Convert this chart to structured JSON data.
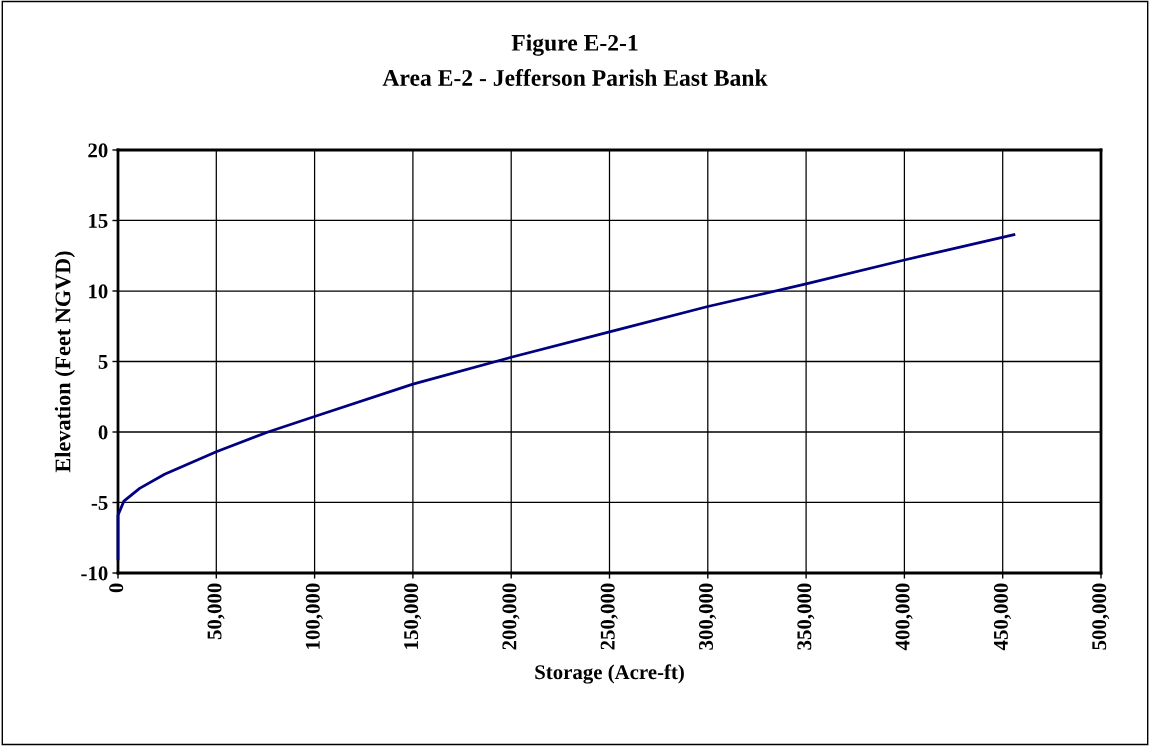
{
  "chart_data": {
    "type": "line",
    "title": "Figure E-2-1",
    "subtitle": "Area E-2 - Jefferson Parish East Bank",
    "xlabel": "Storage (Acre-ft)",
    "ylabel": "Elevation (Feet NGVD)",
    "series": [
      {
        "color": "#000080",
        "x": [
          0,
          0,
          3000,
          11000,
          23700,
          50000,
          76300,
          100000,
          150000,
          200000,
          250000,
          300000,
          350000,
          400000,
          455700
        ],
        "values": [
          -9,
          -5.9,
          -4.9,
          -4.0,
          -3.0,
          -1.4,
          0,
          1.1,
          3.4,
          5.3,
          7.1,
          8.9,
          10.5,
          12.2,
          14
        ]
      }
    ],
    "xlim": [
      0,
      500000
    ],
    "xticks": [
      {
        "value": 0,
        "label": "0"
      },
      {
        "value": 50000,
        "label": "50,000"
      },
      {
        "value": 100000,
        "label": "100,000"
      },
      {
        "value": 150000,
        "label": "150,000"
      },
      {
        "value": 200000,
        "label": "200,000"
      },
      {
        "value": 250000,
        "label": "250,000"
      },
      {
        "value": 300000,
        "label": "300,000"
      },
      {
        "value": 350000,
        "label": "350,000"
      },
      {
        "value": 400000,
        "label": "400,000"
      },
      {
        "value": 450000,
        "label": "450,000"
      },
      {
        "value": 500000,
        "label": "500,000"
      }
    ],
    "ylim": [
      -10,
      20
    ],
    "yticks": [
      -10,
      -5,
      0,
      5,
      10,
      15,
      20
    ],
    "grid": true,
    "marker": "none",
    "line_style": "solid"
  }
}
